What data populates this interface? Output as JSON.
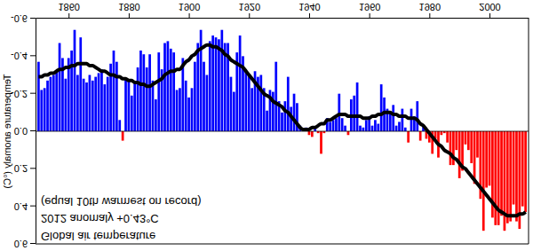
{
  "chart_data": {
    "type": "bar",
    "title": "Global air temperature",
    "annotations": [
      "2012 anomaly +0.43°C",
      "(equal 10th warmest on record)"
    ],
    "y_label": "Temperature anomaly (°C)",
    "x": [
      1850,
      1851,
      1852,
      1853,
      1854,
      1855,
      1856,
      1857,
      1858,
      1859,
      1860,
      1861,
      1862,
      1863,
      1864,
      1865,
      1866,
      1867,
      1868,
      1869,
      1870,
      1871,
      1872,
      1873,
      1874,
      1875,
      1876,
      1877,
      1878,
      1879,
      1880,
      1881,
      1882,
      1883,
      1884,
      1885,
      1886,
      1887,
      1888,
      1889,
      1890,
      1891,
      1892,
      1893,
      1894,
      1895,
      1896,
      1897,
      1898,
      1899,
      1900,
      1901,
      1902,
      1903,
      1904,
      1905,
      1906,
      1907,
      1908,
      1909,
      1910,
      1911,
      1912,
      1913,
      1914,
      1915,
      1916,
      1917,
      1918,
      1919,
      1920,
      1921,
      1922,
      1923,
      1924,
      1925,
      1926,
      1927,
      1928,
      1929,
      1930,
      1931,
      1932,
      1933,
      1934,
      1935,
      1936,
      1937,
      1938,
      1939,
      1940,
      1941,
      1942,
      1943,
      1944,
      1945,
      1946,
      1947,
      1948,
      1949,
      1950,
      1951,
      1952,
      1953,
      1954,
      1955,
      1956,
      1957,
      1958,
      1959,
      1960,
      1961,
      1962,
      1963,
      1964,
      1965,
      1966,
      1967,
      1968,
      1969,
      1970,
      1971,
      1972,
      1973,
      1974,
      1975,
      1976,
      1977,
      1978,
      1979,
      1980,
      1981,
      1982,
      1983,
      1984,
      1985,
      1986,
      1987,
      1988,
      1989,
      1990,
      1991,
      1992,
      1993,
      1994,
      1995,
      1996,
      1997,
      1998,
      1999,
      2000,
      2001,
      2002,
      2003,
      2004,
      2005,
      2006,
      2007,
      2008,
      2009,
      2010,
      2011,
      2012
    ],
    "series": [
      {
        "type": "bar",
        "values": [
          -0.37,
          -0.22,
          -0.23,
          -0.27,
          -0.29,
          -0.3,
          -0.32,
          -0.47,
          -0.39,
          -0.28,
          -0.39,
          -0.43,
          -0.54,
          -0.3,
          -0.5,
          -0.28,
          -0.26,
          -0.3,
          -0.27,
          -0.29,
          -0.31,
          -0.33,
          -0.25,
          -0.29,
          -0.36,
          -0.43,
          -0.37,
          -0.06,
          0.05,
          -0.28,
          -0.27,
          -0.19,
          -0.26,
          -0.34,
          -0.43,
          -0.41,
          -0.34,
          -0.41,
          -0.27,
          -0.17,
          -0.42,
          -0.33,
          -0.47,
          -0.48,
          -0.44,
          -0.42,
          -0.22,
          -0.23,
          -0.39,
          -0.27,
          -0.18,
          -0.23,
          -0.37,
          -0.47,
          -0.54,
          -0.37,
          -0.3,
          -0.48,
          -0.51,
          -0.5,
          -0.49,
          -0.54,
          -0.47,
          -0.47,
          -0.29,
          -0.21,
          -0.42,
          -0.51,
          -0.4,
          -0.32,
          -0.3,
          -0.23,
          -0.32,
          -0.29,
          -0.3,
          -0.23,
          -0.11,
          -0.22,
          -0.21,
          -0.37,
          -0.16,
          -0.1,
          -0.16,
          -0.29,
          -0.13,
          -0.2,
          -0.15,
          -0.03,
          -0.01,
          -0.02,
          0.02,
          0.03,
          -0.02,
          0.01,
          0.12,
          0.01,
          -0.07,
          -0.05,
          -0.06,
          -0.07,
          -0.2,
          -0.07,
          -0.03,
          0.02,
          -0.17,
          -0.19,
          -0.26,
          -0.03,
          -0.02,
          -0.06,
          -0.08,
          -0.03,
          -0.06,
          -0.04,
          -0.25,
          -0.18,
          -0.12,
          -0.1,
          -0.14,
          -0.03,
          -0.05,
          -0.12,
          -0.02,
          0.06,
          -0.12,
          -0.08,
          -0.16,
          0.05,
          -0.03,
          0.04,
          0.06,
          0.12,
          0.04,
          0.14,
          0.02,
          0.01,
          0.06,
          0.18,
          0.18,
          0.1,
          0.25,
          0.21,
          0.07,
          0.1,
          0.17,
          0.28,
          0.14,
          0.36,
          0.53,
          0.3,
          0.29,
          0.46,
          0.5,
          0.5,
          0.45,
          0.53,
          0.49,
          0.48,
          0.39,
          0.48,
          0.52,
          0.4,
          0.43
        ],
        "colors": [
          "blue",
          "blue",
          "blue",
          "blue",
          "blue",
          "blue",
          "blue",
          "blue",
          "blue",
          "blue",
          "blue",
          "blue",
          "blue",
          "blue",
          "blue",
          "blue",
          "blue",
          "blue",
          "blue",
          "blue",
          "blue",
          "blue",
          "blue",
          "blue",
          "blue",
          "blue",
          "blue",
          "blue",
          "red",
          "blue",
          "blue",
          "blue",
          "blue",
          "blue",
          "blue",
          "blue",
          "blue",
          "blue",
          "blue",
          "blue",
          "blue",
          "blue",
          "blue",
          "blue",
          "blue",
          "blue",
          "blue",
          "blue",
          "blue",
          "blue",
          "blue",
          "blue",
          "blue",
          "blue",
          "blue",
          "blue",
          "blue",
          "blue",
          "blue",
          "blue",
          "blue",
          "blue",
          "blue",
          "blue",
          "blue",
          "blue",
          "blue",
          "blue",
          "blue",
          "blue",
          "blue",
          "blue",
          "blue",
          "blue",
          "blue",
          "blue",
          "blue",
          "blue",
          "blue",
          "blue",
          "blue",
          "blue",
          "blue",
          "blue",
          "blue",
          "blue",
          "blue",
          "blue",
          "blue",
          "blue",
          "red",
          "red",
          "blue",
          "red",
          "red",
          "red",
          "blue",
          "blue",
          "blue",
          "blue",
          "blue",
          "blue",
          "blue",
          "red",
          "blue",
          "blue",
          "blue",
          "blue",
          "blue",
          "blue",
          "blue",
          "blue",
          "blue",
          "blue",
          "blue",
          "blue",
          "blue",
          "blue",
          "blue",
          "blue",
          "blue",
          "blue",
          "blue",
          "red",
          "blue",
          "blue",
          "blue",
          "red",
          "blue",
          "red",
          "red",
          "red",
          "red",
          "red",
          "red",
          "red",
          "red",
          "red",
          "red",
          "red",
          "red",
          "red",
          "red",
          "red",
          "red",
          "red",
          "red",
          "red",
          "red",
          "red",
          "red",
          "red",
          "red",
          "red",
          "red",
          "red",
          "red",
          "red",
          "red",
          "red",
          "red",
          "red",
          "red"
        ]
      },
      {
        "type": "line",
        "color": "#000000",
        "values": [
          -0.29,
          -0.29,
          -0.3,
          -0.3,
          -0.31,
          -0.31,
          -0.32,
          -0.33,
          -0.33,
          -0.34,
          -0.34,
          -0.35,
          -0.35,
          -0.36,
          -0.36,
          -0.36,
          -0.36,
          -0.35,
          -0.35,
          -0.34,
          -0.33,
          -0.32,
          -0.32,
          -0.31,
          -0.3,
          -0.3,
          -0.29,
          -0.29,
          -0.28,
          -0.28,
          -0.27,
          -0.27,
          -0.26,
          -0.26,
          -0.25,
          -0.25,
          -0.24,
          -0.24,
          -0.25,
          -0.26,
          -0.27,
          -0.28,
          -0.3,
          -0.31,
          -0.32,
          -0.32,
          -0.33,
          -0.33,
          -0.35,
          -0.37,
          -0.38,
          -0.4,
          -0.41,
          -0.43,
          -0.44,
          -0.45,
          -0.46,
          -0.46,
          -0.45,
          -0.45,
          -0.44,
          -0.43,
          -0.41,
          -0.4,
          -0.38,
          -0.37,
          -0.36,
          -0.35,
          -0.34,
          -0.32,
          -0.3,
          -0.28,
          -0.26,
          -0.24,
          -0.22,
          -0.2,
          -0.19,
          -0.18,
          -0.16,
          -0.15,
          -0.14,
          -0.13,
          -0.11,
          -0.1,
          -0.08,
          -0.06,
          -0.04,
          -0.02,
          -0.01,
          -0.01,
          -0.01,
          -0.02,
          -0.02,
          -0.03,
          -0.04,
          -0.04,
          -0.06,
          -0.06,
          -0.07,
          -0.08,
          -0.09,
          -0.09,
          -0.09,
          -0.08,
          -0.08,
          -0.08,
          -0.08,
          -0.08,
          -0.07,
          -0.07,
          -0.07,
          -0.08,
          -0.08,
          -0.09,
          -0.09,
          -0.1,
          -0.1,
          -0.1,
          -0.09,
          -0.09,
          -0.08,
          -0.08,
          -0.08,
          -0.07,
          -0.07,
          -0.07,
          -0.06,
          -0.04,
          -0.03,
          -0.01,
          0.01,
          0.03,
          0.05,
          0.07,
          0.08,
          0.1,
          0.11,
          0.12,
          0.14,
          0.15,
          0.17,
          0.19,
          0.2,
          0.22,
          0.24,
          0.26,
          0.28,
          0.3,
          0.32,
          0.34,
          0.36,
          0.38,
          0.4,
          0.42,
          0.43,
          0.44,
          0.45,
          0.45,
          0.45,
          0.45,
          0.44,
          0.44,
          0.43
        ]
      }
    ],
    "xlim": [
      1849,
      2013
    ],
    "xticks": [
      1860,
      1880,
      1900,
      1920,
      1940,
      1960,
      1980,
      2000
    ],
    "ylim": [
      -0.6,
      0.6
    ],
    "yticks": [
      -0.6,
      -0.4,
      -0.2,
      {
        "value": 0,
        "label": "0.0"
      },
      0.2,
      0.4,
      0.6
    ],
    "grid": false
  }
}
